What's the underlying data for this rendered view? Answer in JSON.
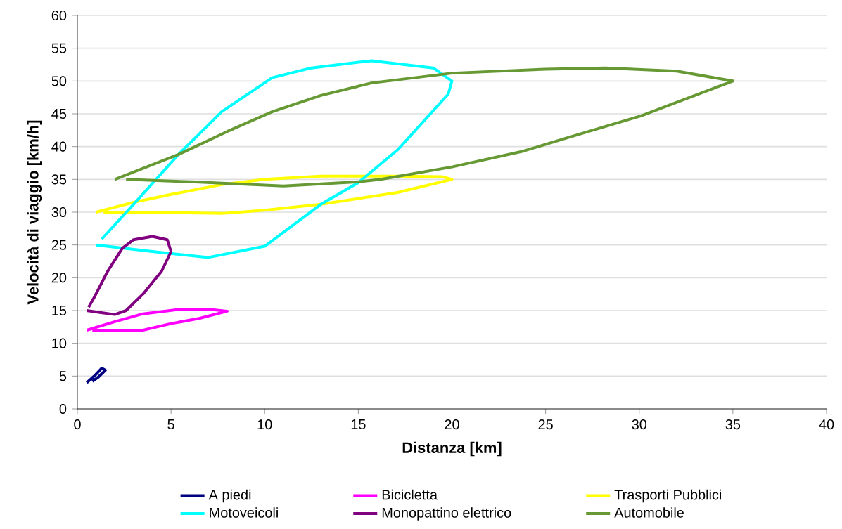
{
  "chart_data": {
    "type": "line",
    "xlabel": "Distanza [km]",
    "ylabel": "Velocità di viaggio [km/h]",
    "xlim": [
      0,
      40
    ],
    "ylim": [
      0,
      60
    ],
    "xticks": [
      0,
      5,
      10,
      15,
      20,
      25,
      30,
      35,
      40
    ],
    "yticks": [
      0,
      5,
      10,
      15,
      20,
      25,
      30,
      35,
      40,
      45,
      50,
      55,
      60
    ],
    "grid": "y",
    "legend": "bottom",
    "series": [
      {
        "name": "A piedi",
        "color": "#000080",
        "x": [
          0.5,
          0.9,
          1.3,
          1.5,
          1.1,
          0.8
        ],
        "values": [
          4,
          5,
          6.2,
          5.9,
          4.8,
          4.2
        ]
      },
      {
        "name": "Bicicletta",
        "color": "#ff00ff",
        "x": [
          0.5,
          2,
          3.5,
          5.5,
          7,
          8,
          6.5,
          5,
          3.5,
          2,
          0.8
        ],
        "values": [
          12,
          13.3,
          14.5,
          15.2,
          15.2,
          14.9,
          13.8,
          13,
          12,
          11.9,
          12
        ]
      },
      {
        "name": "Trasporti Pubblici",
        "color": "#ffff00",
        "x": [
          1,
          3,
          5,
          7.7,
          10,
          13,
          17,
          19.5,
          20,
          17.1,
          13,
          10,
          7.7,
          3.6,
          1.4
        ],
        "values": [
          30,
          31.5,
          32.7,
          34.2,
          35,
          35.5,
          35.5,
          35.4,
          35,
          33,
          31.2,
          30.3,
          29.8,
          30,
          30
        ]
      },
      {
        "name": "Motoveicoli",
        "color": "#00ffff",
        "x": [
          1,
          4,
          7,
          10,
          13,
          15,
          17.1,
          19.8,
          20,
          19,
          15.7,
          12.5,
          10.4,
          7.7,
          5.4,
          3,
          1.3
        ],
        "values": [
          25,
          24,
          23.1,
          24.8,
          31.2,
          34.5,
          39.5,
          48,
          50,
          52,
          53.1,
          52,
          50.5,
          45.3,
          38.8,
          31.2,
          25.9
        ]
      },
      {
        "name": "Monopattino elettrico",
        "color": "#800080",
        "x": [
          0.5,
          1.2,
          2,
          2.6,
          3.5,
          4.5,
          5,
          4.8,
          4,
          3,
          2.4,
          1.6,
          0.9,
          0.6
        ],
        "values": [
          15,
          14.7,
          14.4,
          15,
          17.5,
          21,
          24,
          25.8,
          26.3,
          25.8,
          24.5,
          20.9,
          17,
          15.5
        ]
      },
      {
        "name": "Automobile",
        "color": "#669933",
        "x": [
          2,
          5.4,
          8,
          10.4,
          13,
          15.7,
          20,
          25,
          28.2,
          32,
          35,
          30.1,
          26,
          23.8,
          20,
          16.2,
          14.9,
          11,
          6.3,
          2.6
        ],
        "values": [
          35,
          38.8,
          42.3,
          45.3,
          47.8,
          49.7,
          51.2,
          51.8,
          52,
          51.5,
          50,
          44.7,
          41.2,
          39.3,
          36.9,
          35,
          34.6,
          34,
          34.6,
          35
        ]
      }
    ]
  }
}
